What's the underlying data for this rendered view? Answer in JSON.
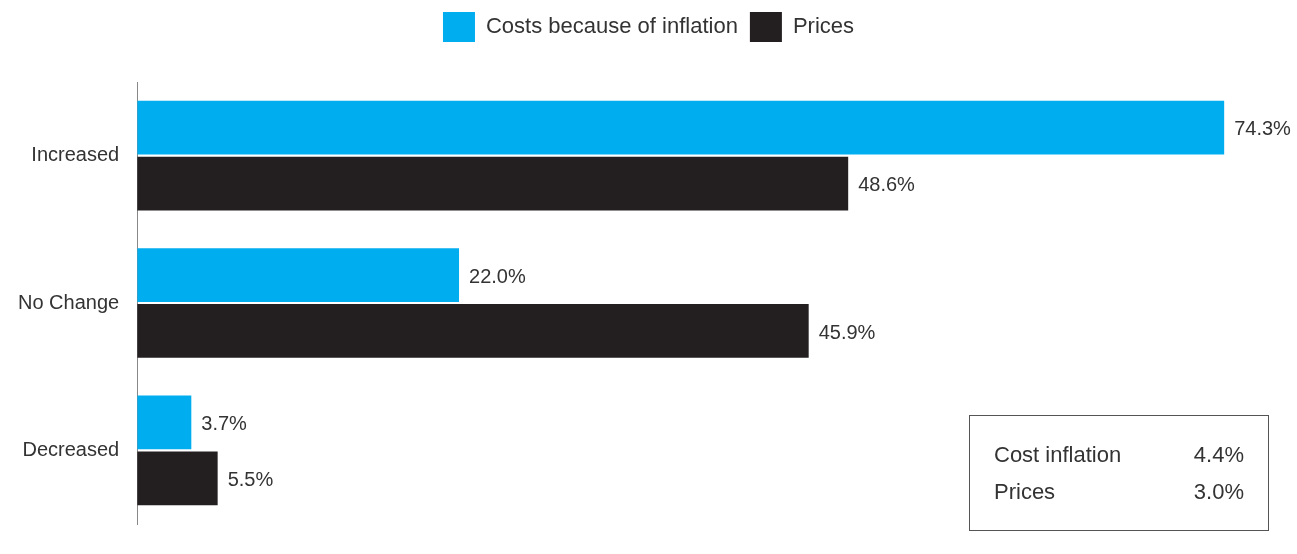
{
  "chart_data": {
    "type": "bar",
    "orientation": "horizontal",
    "categories": [
      "Increased",
      "No Change",
      "Decreased"
    ],
    "series": [
      {
        "name": "Costs because of inflation",
        "color": "#00adee",
        "values": [
          74.3,
          22.0,
          3.7
        ],
        "value_labels": [
          "74.3%",
          "22.0%",
          "3.7%"
        ]
      },
      {
        "name": "Prices",
        "color": "#231f20",
        "values": [
          48.6,
          45.9,
          5.5
        ],
        "value_labels": [
          "48.6%",
          "45.9%",
          "5.5%"
        ]
      }
    ],
    "legend": "top",
    "grid": false,
    "tick_labels": "y",
    "annotations": [
      "Cost inflation 4.4%",
      "Prices 3.0%"
    ]
  }
}
